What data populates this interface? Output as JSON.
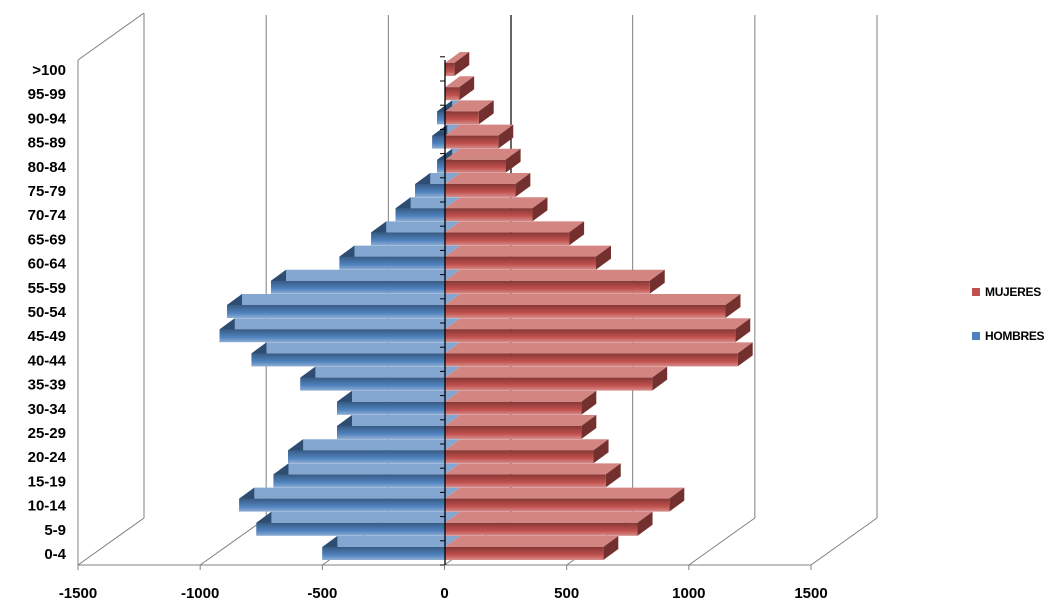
{
  "chart_data": {
    "type": "bar",
    "orientation": "horizontal",
    "style": "3d-population-pyramid",
    "categories": [
      "0-4",
      "5-9",
      "10-14",
      "15-19",
      "20-24",
      "25-29",
      "30-34",
      "35-39",
      "40-44",
      "45-49",
      "50-54",
      "55-59",
      "60-64",
      "65-69",
      "70-74",
      "75-79",
      "80-84",
      "85-89",
      "90-94",
      "95-99",
      ">100"
    ],
    "series": [
      {
        "name": "HOMBRES",
        "color": "#4F81BD",
        "values": [
          -500,
          -770,
          -840,
          -700,
          -640,
          -440,
          -440,
          -590,
          -790,
          -920,
          -890,
          -710,
          -430,
          -300,
          -200,
          -120,
          -30,
          -50,
          -30,
          0,
          0
        ]
      },
      {
        "name": "MUJERES",
        "color": "#C0504D",
        "values": [
          650,
          790,
          920,
          660,
          610,
          560,
          560,
          850,
          1200,
          1190,
          1150,
          840,
          620,
          510,
          360,
          290,
          250,
          220,
          140,
          60,
          40
        ]
      }
    ],
    "title": "",
    "xlabel": "",
    "ylabel": "",
    "xlim": [
      -1500,
      1500
    ],
    "xticks": [
      "-1500",
      "-1000",
      "-500",
      "0",
      "500",
      "1000",
      "1500"
    ],
    "grid": true,
    "legend": "right"
  }
}
